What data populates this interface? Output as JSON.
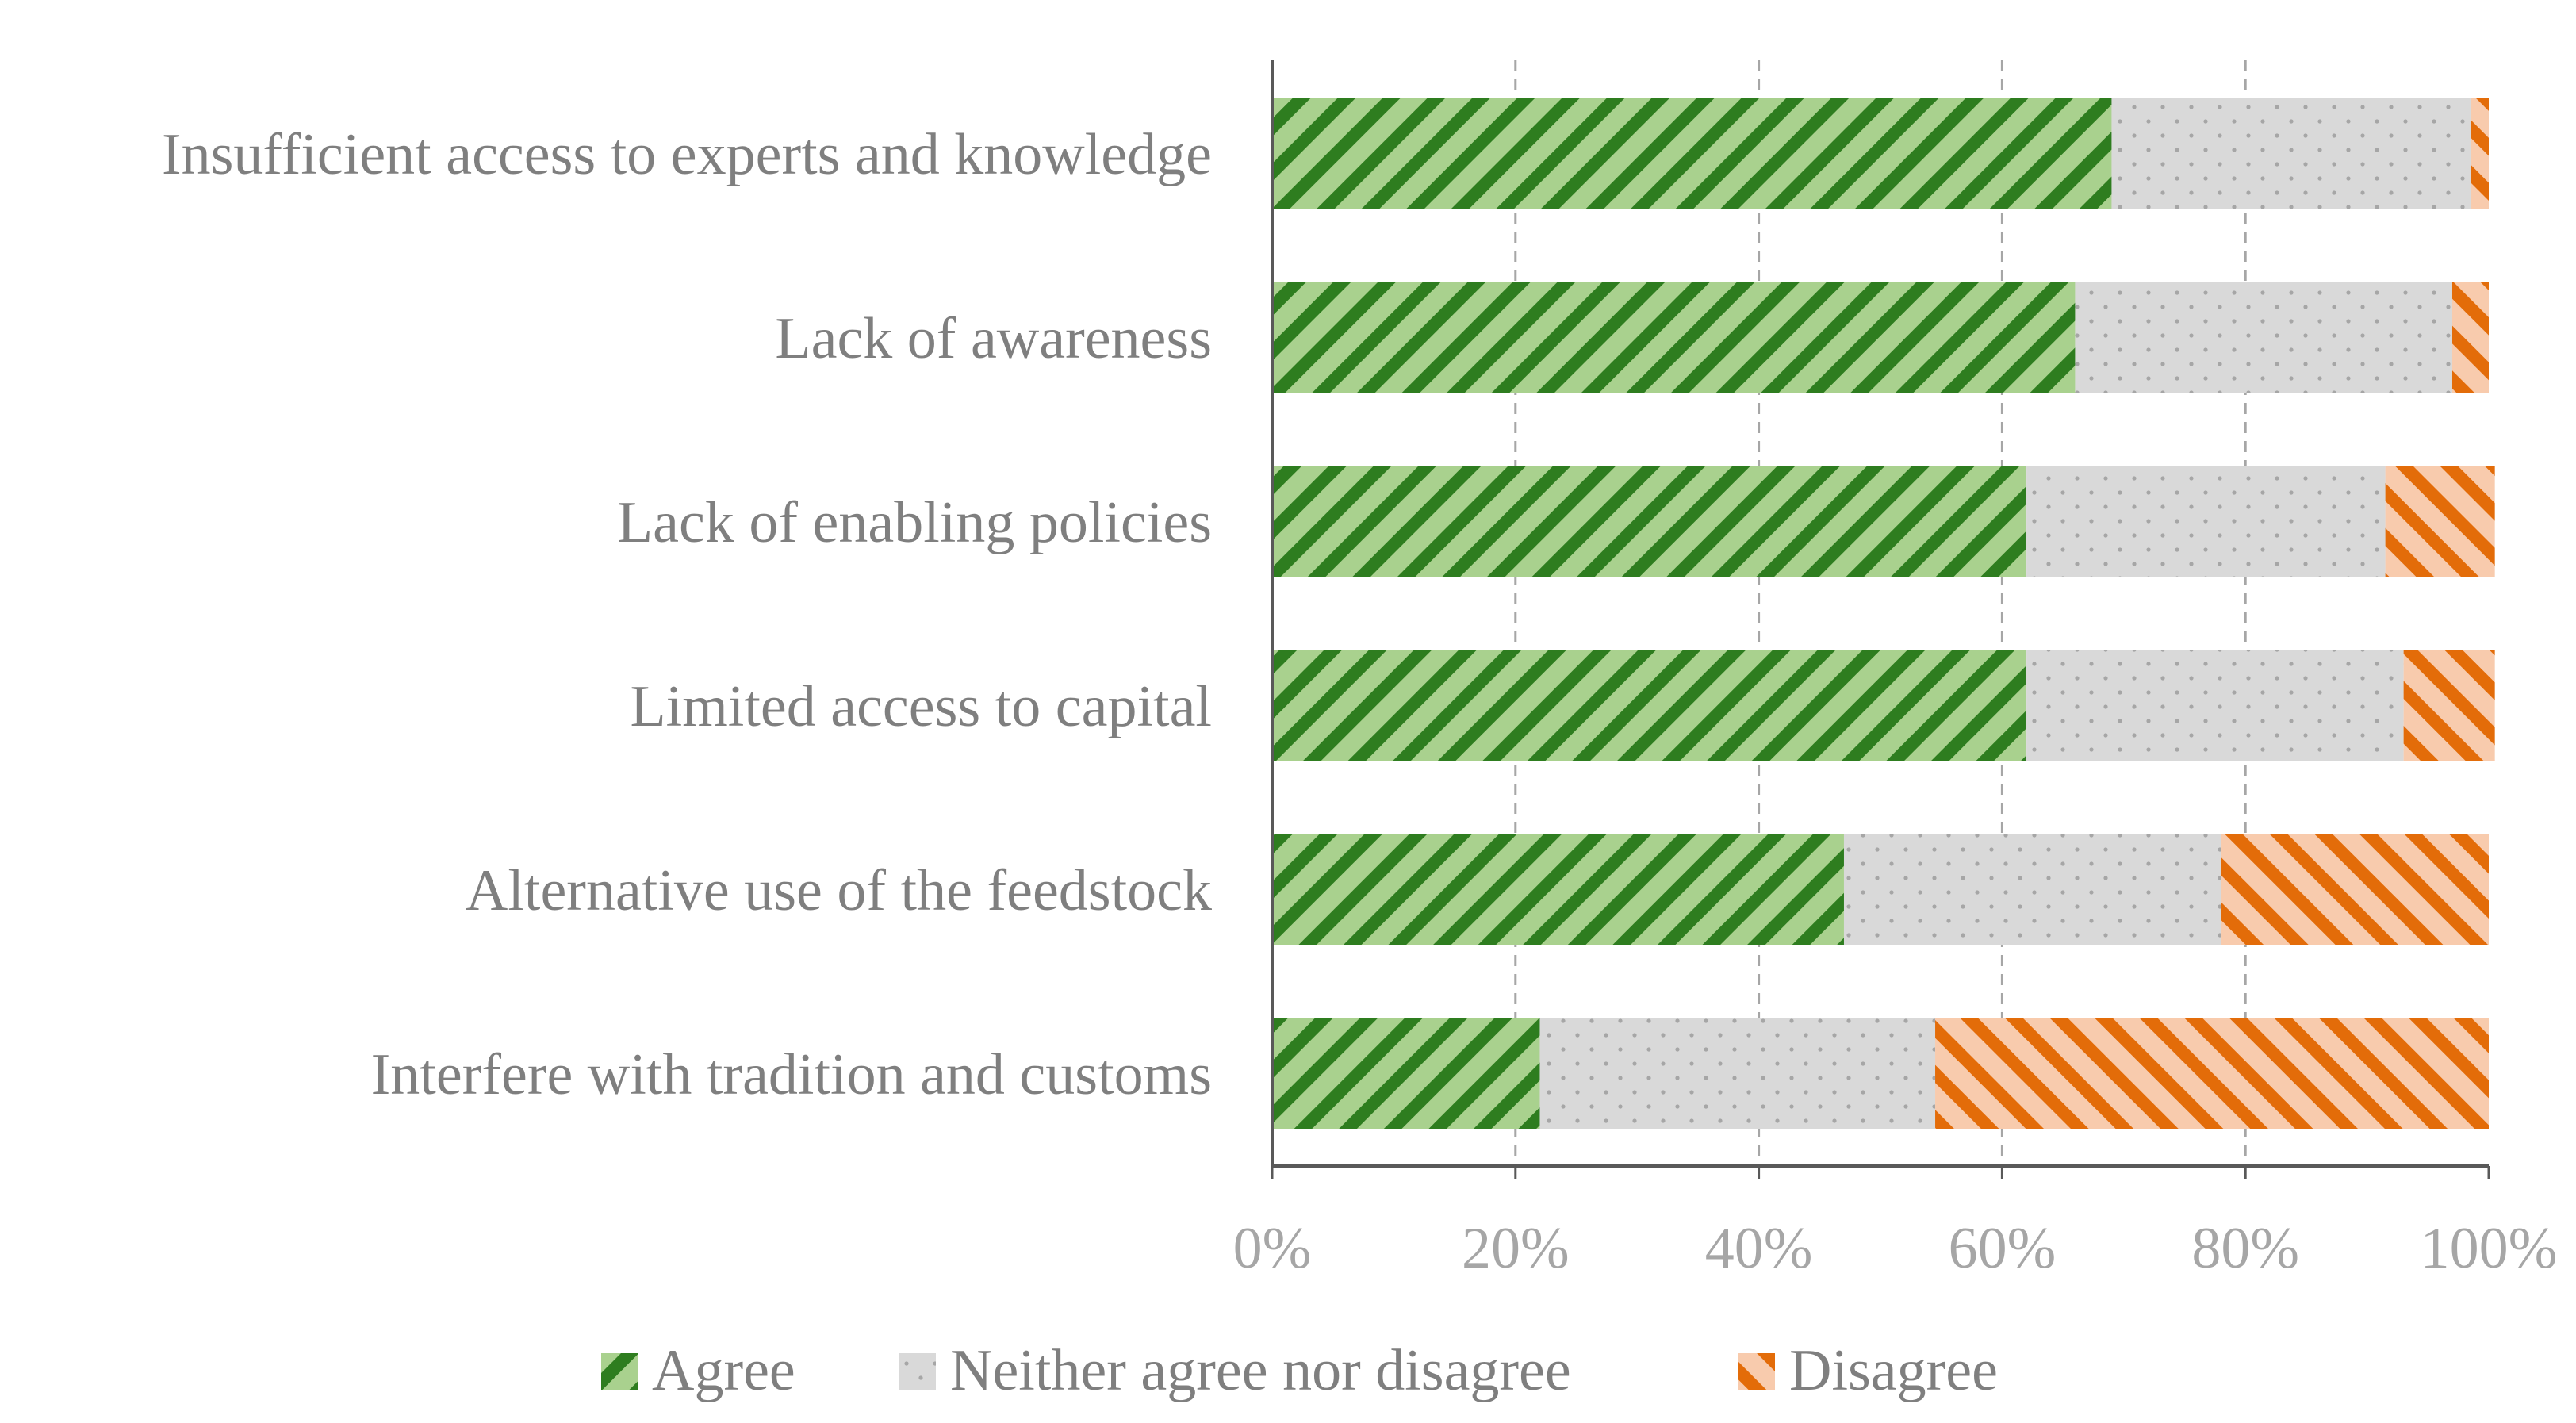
{
  "chart_data": {
    "type": "bar",
    "orientation": "horizontal",
    "stacked": "percent",
    "title": "",
    "xlabel": "",
    "ylabel": "",
    "xlim": [
      0,
      100
    ],
    "x_ticks": [
      "0%",
      "20%",
      "40%",
      "60%",
      "80%",
      "100%"
    ],
    "grid": "vertical dashed",
    "legend_position": "bottom",
    "categories": [
      "Insufficient access to experts and knowledge",
      "Lack of awareness",
      "Lack of enabling policies",
      "Limited access to capital",
      "Alternative use of the feedstock",
      "Interfere with tradition and customs"
    ],
    "series": [
      {
        "name": "Agree",
        "values": [
          69,
          66,
          62,
          62,
          47,
          22
        ],
        "color": "#2e7d1f",
        "fill": "#a9d18e",
        "pattern": "diagonal-up"
      },
      {
        "name": "Neither agree nor disagree",
        "values": [
          29.5,
          31,
          29.5,
          31,
          31,
          32.5
        ],
        "color": "#bfbfbf",
        "fill": "#d9d9d9",
        "pattern": "dots"
      },
      {
        "name": "Disagree",
        "values": [
          1.5,
          3,
          9,
          7.5,
          22,
          45.5
        ],
        "color": "#e36c09",
        "fill": "#f8cbad",
        "pattern": "diagonal-down"
      }
    ]
  }
}
